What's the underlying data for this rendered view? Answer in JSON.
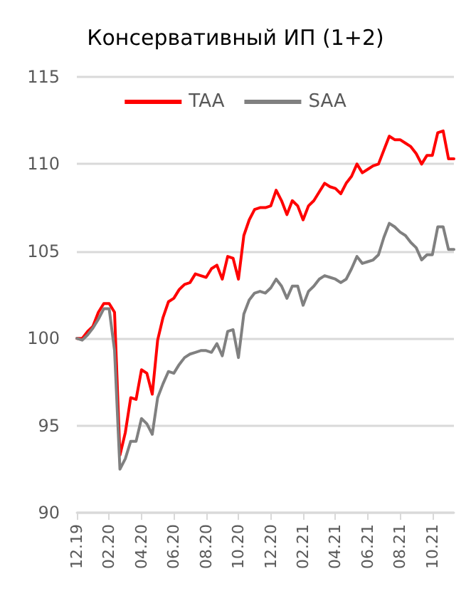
{
  "chart_data": {
    "type": "line",
    "title": "Консервативный ИП (1+2)",
    "categories": [
      "12.19",
      null,
      null,
      null,
      null,
      null,
      "02.20",
      null,
      null,
      null,
      null,
      null,
      "04.20",
      null,
      null,
      null,
      null,
      null,
      "06.20",
      null,
      null,
      null,
      null,
      null,
      "08.20",
      null,
      null,
      null,
      null,
      null,
      "10.20",
      null,
      null,
      null,
      null,
      null,
      "12.20",
      null,
      null,
      null,
      null,
      null,
      "02.21",
      null,
      null,
      null,
      null,
      null,
      "04.21",
      null,
      null,
      null,
      null,
      null,
      "06.21",
      null,
      null,
      null,
      null,
      null,
      "08.21",
      null,
      null,
      null,
      null,
      null,
      "10.21",
      null,
      null,
      null,
      null
    ],
    "series": [
      {
        "name": "TAA",
        "color": "#ff0000",
        "values": [
          100,
          100,
          100.4,
          100.7,
          101.5,
          102,
          102,
          101.5,
          93.3,
          94.6,
          96.6,
          96.5,
          98.2,
          98.0,
          96.8,
          99.9,
          101.2,
          102.1,
          102.3,
          102.8,
          103.1,
          103.2,
          103.7,
          103.6,
          103.5,
          104.0,
          104.2,
          103.4,
          104.7,
          104.6,
          103.4,
          105.9,
          106.8,
          107.4,
          107.5,
          107.5,
          107.6,
          108.5,
          107.9,
          107.1,
          107.9,
          107.6,
          106.8,
          107.6,
          107.9,
          108.4,
          108.9,
          108.7,
          108.6,
          108.3,
          108.9,
          109.3,
          110.0,
          109.5,
          109.7,
          109.9,
          110.0,
          110.8,
          111.6,
          111.4,
          111.4,
          111.2,
          111.0,
          110.6,
          110.0,
          110.5,
          110.5,
          111.8,
          111.9,
          110.3,
          110.3
        ]
      },
      {
        "name": "SAA",
        "color": "#808080",
        "values": [
          100,
          99.9,
          100.2,
          100.6,
          101.1,
          101.7,
          101.7,
          99.3,
          92.5,
          93.1,
          94.1,
          94.1,
          95.4,
          95.1,
          94.5,
          96.6,
          97.4,
          98.1,
          98.0,
          98.5,
          98.9,
          99.1,
          99.2,
          99.3,
          99.3,
          99.2,
          99.7,
          99.0,
          100.4,
          100.5,
          98.9,
          101.4,
          102.2,
          102.6,
          102.7,
          102.6,
          102.9,
          103.4,
          103.0,
          102.3,
          103.0,
          103.0,
          101.9,
          102.7,
          103.0,
          103.4,
          103.6,
          103.5,
          103.4,
          103.2,
          103.4,
          104.0,
          104.7,
          104.3,
          104.4,
          104.5,
          104.8,
          105.8,
          106.6,
          106.4,
          106.1,
          105.9,
          105.5,
          105.2,
          104.5,
          104.8,
          104.8,
          106.4,
          106.4,
          105.1,
          105.1
        ]
      }
    ],
    "ylim": [
      90,
      115
    ],
    "yticks": [
      90,
      95,
      100,
      105,
      110,
      115
    ],
    "grid": "y",
    "legend": "top",
    "marker": "none",
    "line_style": "solid"
  }
}
